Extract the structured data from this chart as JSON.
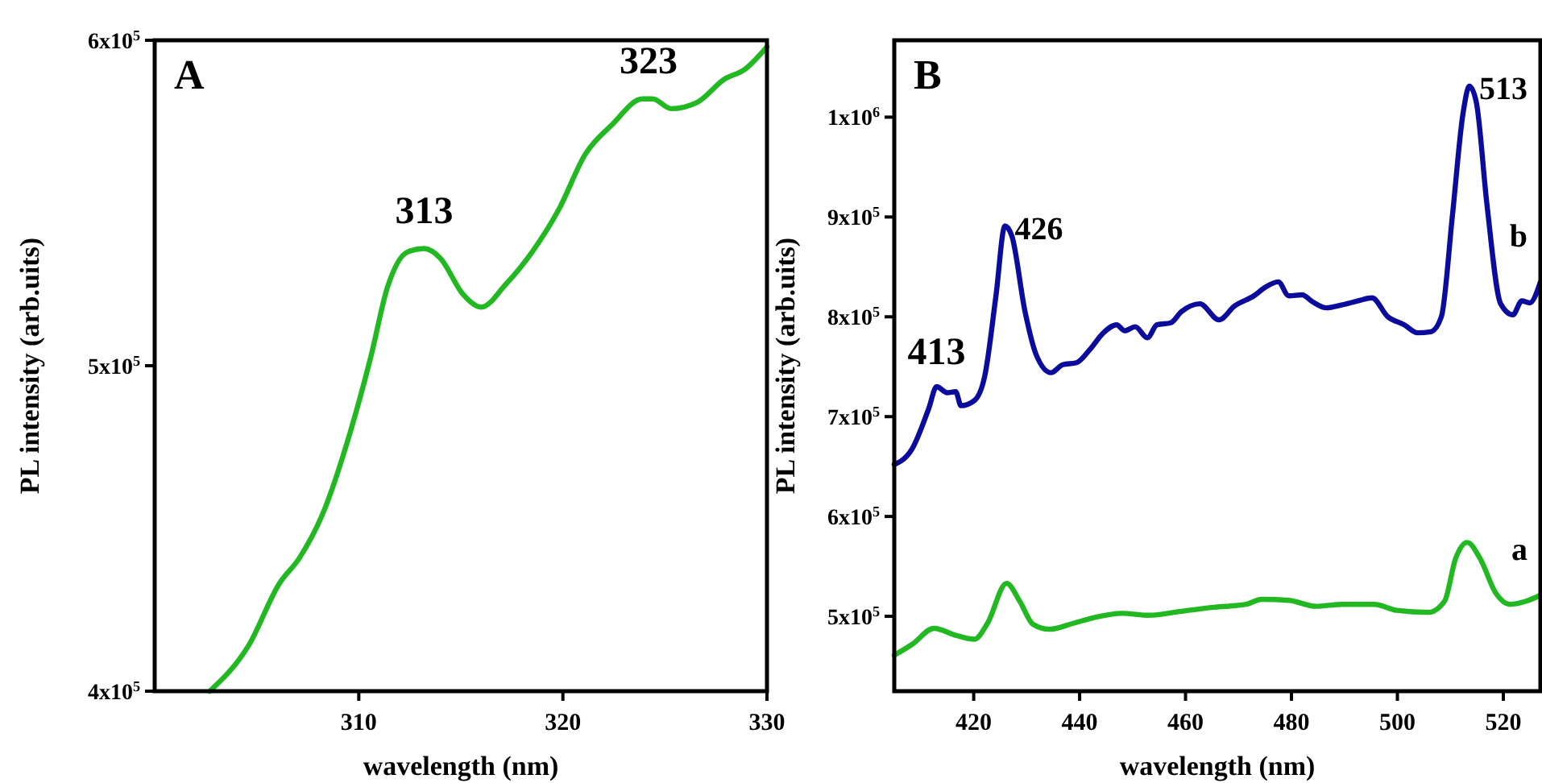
{
  "chart_data": [
    {
      "type": "line",
      "title": "A",
      "xlabel": "wavelength (nm)",
      "ylabel": "PL intensity (arb.uits)",
      "xlim": [
        300,
        330
      ],
      "ylim": [
        400000,
        600000
      ],
      "xticks": [
        310,
        320,
        330
      ],
      "yticks": [
        {
          "value": 400000,
          "label": "4x10$^{5}$"
        },
        {
          "value": 500000,
          "label": "5x10$^{5}$"
        },
        {
          "value": 600000,
          "label": "6x10$^{5}$"
        }
      ],
      "grid": false,
      "line_style": "solid",
      "series": [
        {
          "color": "#22b822",
          "x": [
            302.7,
            304.6,
            306.1,
            307.1,
            308.2,
            309.6,
            310.6,
            311.4,
            312.4,
            313.2,
            314.0,
            315.1,
            316.0,
            317.2,
            318.5,
            319.8,
            321.1,
            322.4,
            323.9,
            324.4,
            325.3,
            326.6,
            327.9,
            328.9,
            330
          ],
          "values": [
            400000,
            414000,
            433000,
            441000,
            454000,
            480000,
            503000,
            524000,
            535000,
            536000,
            533000,
            522000,
            518000,
            525000,
            535000,
            548000,
            565000,
            574000,
            582000,
            582000,
            579000,
            581000,
            588000,
            591000,
            598000
          ]
        }
      ],
      "annotations": [
        {
          "text": "313",
          "x": 313.2,
          "y": 536000
        },
        {
          "text": "323",
          "x": 324.2,
          "y": 582000
        }
      ]
    },
    {
      "type": "line",
      "title": "B",
      "xlabel": "wavelength (nm)",
      "ylabel": "PL intensity (arb.uits)",
      "xlim": [
        405,
        527
      ],
      "ylim": [
        425000,
        1077000
      ],
      "xticks": [
        420,
        440,
        460,
        480,
        500,
        520
      ],
      "yticks": [
        {
          "value": 500000,
          "label": "5x10$^{5}$"
        },
        {
          "value": 600000,
          "label": "6x10$^{5}$"
        },
        {
          "value": 700000,
          "label": "7x10$^{5}$"
        },
        {
          "value": 800000,
          "label": "8x10$^{5}$"
        },
        {
          "value": 900000,
          "label": "9x10$^{5}$"
        },
        {
          "value": 1000000,
          "label": "1x10$^{6}$"
        }
      ],
      "grid": false,
      "line_style": "solid",
      "series": [
        {
          "name": "b",
          "color": "#0c0c9c",
          "x": [
            405,
            408.4,
            411.5,
            413,
            415,
            416.6,
            417.6,
            420.1,
            422.1,
            424.2,
            425.9,
            427.2,
            429.7,
            431.8,
            434.6,
            436.8,
            439.4,
            441.9,
            444.5,
            447,
            448.5,
            450.5,
            452.8,
            454.6,
            457.2,
            459.2,
            462.7,
            466.3,
            469.3,
            472.9,
            474.9,
            477.5,
            479.5,
            482,
            484,
            486.6,
            489.6,
            492.6,
            495.2,
            498.2,
            501.3,
            503.8,
            506.3,
            508.3,
            510.4,
            512.4,
            513.6,
            514.9,
            516.9,
            519.5,
            521.8,
            523.5,
            525,
            527
          ],
          "values": [
            652000,
            668000,
            708000,
            730000,
            724000,
            725000,
            711000,
            716000,
            741000,
            821000,
            891000,
            881000,
            805000,
            762000,
            744000,
            752000,
            754000,
            767000,
            784000,
            792000,
            786000,
            790000,
            779000,
            792000,
            794000,
            805000,
            813000,
            797000,
            811000,
            821000,
            829000,
            835000,
            821000,
            822000,
            815000,
            809000,
            812000,
            816000,
            819000,
            800000,
            792000,
            784000,
            785000,
            800000,
            902000,
            1004000,
            1031000,
            1015000,
            913000,
            813000,
            802000,
            816000,
            814000,
            835000
          ]
        },
        {
          "name": "a",
          "color": "#22b822",
          "x": [
            405,
            408.4,
            412.5,
            416.6,
            420.1,
            422.6,
            426.2,
            428.7,
            431.2,
            434.3,
            438.8,
            442.9,
            448,
            453.1,
            459.2,
            465.3,
            471.4,
            474.4,
            479.5,
            484.6,
            489.6,
            495.7,
            499.8,
            505.9,
            508.9,
            511,
            513.2,
            515.6,
            518.6,
            521.2,
            524.2,
            527
          ],
          "values": [
            461000,
            472000,
            488000,
            481000,
            477000,
            493000,
            533000,
            515000,
            492000,
            487000,
            493000,
            499000,
            503000,
            501000,
            505000,
            509000,
            512000,
            517000,
            516000,
            510000,
            512000,
            512000,
            506000,
            504000,
            515000,
            558000,
            574000,
            558000,
            523000,
            512000,
            515000,
            521000
          ]
        }
      ],
      "annotations": [
        {
          "text": "413",
          "x": 413,
          "y": 730000
        },
        {
          "text": "426",
          "x": 425.9,
          "y": 891000
        },
        {
          "text": "513",
          "x": 513.6,
          "y": 1031000
        }
      ]
    }
  ]
}
